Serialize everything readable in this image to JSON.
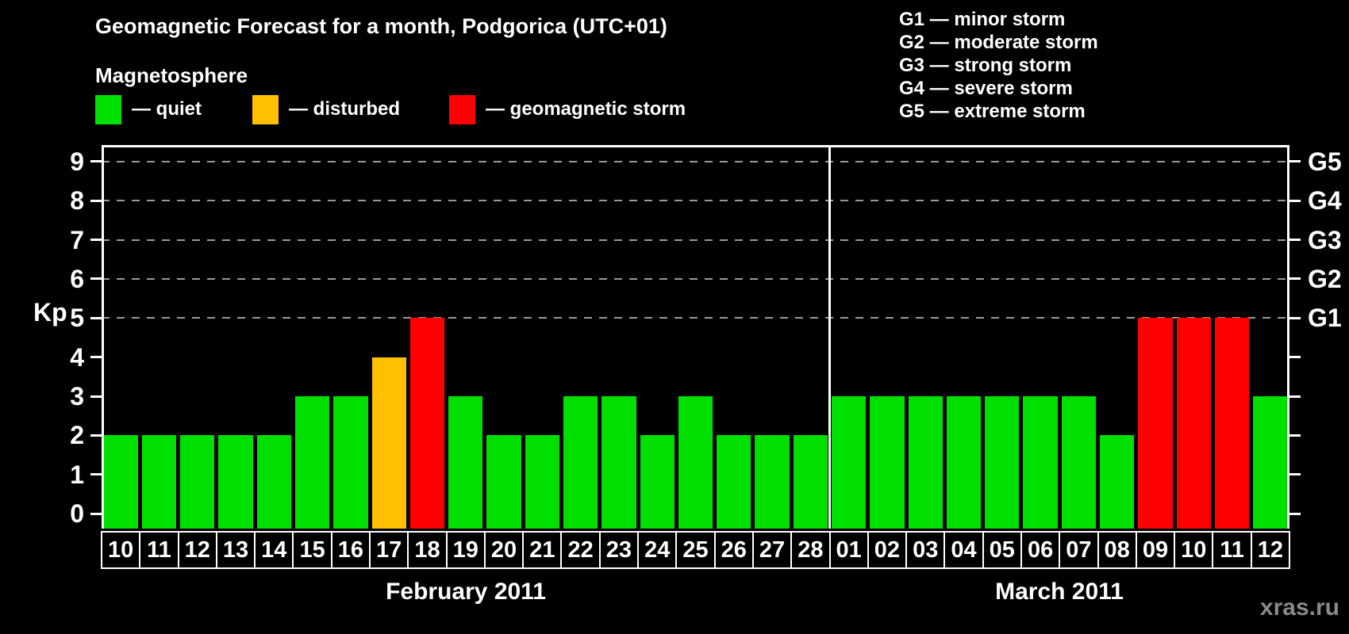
{
  "title": "Geomagnetic Forecast for a month, Podgorica (UTC+01)",
  "legend": {
    "heading": "Magnetosphere",
    "items": [
      {
        "key": "quiet",
        "label": "— quiet"
      },
      {
        "key": "disturbed",
        "label": "— disturbed"
      },
      {
        "key": "storm",
        "label": "— geomagnetic storm"
      }
    ]
  },
  "g_legend": [
    {
      "label": "G1 — minor storm"
    },
    {
      "label": "G2 — moderate storm"
    },
    {
      "label": "G3 — strong storm"
    },
    {
      "label": "G4 — severe storm"
    },
    {
      "label": "G5 — extreme storm"
    }
  ],
  "colors": {
    "quiet": "#00E000",
    "disturbed": "#FFC000",
    "storm": "#FF0000",
    "axis": "#FFFFFF",
    "gridline": "#9A9A9A",
    "background": "#000000",
    "watermark_text": "#8A8A8A"
  },
  "watermark": "xras.ru",
  "chart_data": {
    "type": "bar",
    "title": "Geomagnetic Forecast for a month, Podgorica (UTC+01)",
    "xlabel": "",
    "ylabel": "Kp",
    "ylim": [
      0,
      9
    ],
    "yticks": [
      0,
      1,
      2,
      3,
      4,
      5,
      6,
      7,
      8,
      9
    ],
    "grid": "dashed horizontal lines at Kp 5-9 only",
    "legend_position": "top",
    "right_axis": [
      {
        "label": "G1",
        "kp": 5
      },
      {
        "label": "G2",
        "kp": 6
      },
      {
        "label": "G3",
        "kp": 7
      },
      {
        "label": "G4",
        "kp": 8
      },
      {
        "label": "G5",
        "kp": 9
      }
    ],
    "gridlines_kp": [
      5,
      6,
      7,
      8,
      9
    ],
    "months": [
      {
        "label": "February 2011",
        "days": [
          {
            "day": "10",
            "kp": 2,
            "status": "quiet"
          },
          {
            "day": "11",
            "kp": 2,
            "status": "quiet"
          },
          {
            "day": "12",
            "kp": 2,
            "status": "quiet"
          },
          {
            "day": "13",
            "kp": 2,
            "status": "quiet"
          },
          {
            "day": "14",
            "kp": 2,
            "status": "quiet"
          },
          {
            "day": "15",
            "kp": 3,
            "status": "quiet"
          },
          {
            "day": "16",
            "kp": 3,
            "status": "quiet"
          },
          {
            "day": "17",
            "kp": 4,
            "status": "disturbed"
          },
          {
            "day": "18",
            "kp": 5,
            "status": "storm"
          },
          {
            "day": "19",
            "kp": 3,
            "status": "quiet"
          },
          {
            "day": "20",
            "kp": 2,
            "status": "quiet"
          },
          {
            "day": "21",
            "kp": 2,
            "status": "quiet"
          },
          {
            "day": "22",
            "kp": 3,
            "status": "quiet"
          },
          {
            "day": "23",
            "kp": 3,
            "status": "quiet"
          },
          {
            "day": "24",
            "kp": 2,
            "status": "quiet"
          },
          {
            "day": "25",
            "kp": 3,
            "status": "quiet"
          },
          {
            "day": "26",
            "kp": 2,
            "status": "quiet"
          },
          {
            "day": "27",
            "kp": 2,
            "status": "quiet"
          },
          {
            "day": "28",
            "kp": 2,
            "status": "quiet"
          }
        ]
      },
      {
        "label": "March 2011",
        "days": [
          {
            "day": "01",
            "kp": 3,
            "status": "quiet"
          },
          {
            "day": "02",
            "kp": 3,
            "status": "quiet"
          },
          {
            "day": "03",
            "kp": 3,
            "status": "quiet"
          },
          {
            "day": "04",
            "kp": 3,
            "status": "quiet"
          },
          {
            "day": "05",
            "kp": 3,
            "status": "quiet"
          },
          {
            "day": "06",
            "kp": 3,
            "status": "quiet"
          },
          {
            "day": "07",
            "kp": 3,
            "status": "quiet"
          },
          {
            "day": "08",
            "kp": 2,
            "status": "quiet"
          },
          {
            "day": "09",
            "kp": 5,
            "status": "storm"
          },
          {
            "day": "10",
            "kp": 5,
            "status": "storm"
          },
          {
            "day": "11",
            "kp": 5,
            "status": "storm"
          },
          {
            "day": "12",
            "kp": 3,
            "status": "quiet"
          }
        ]
      }
    ]
  }
}
